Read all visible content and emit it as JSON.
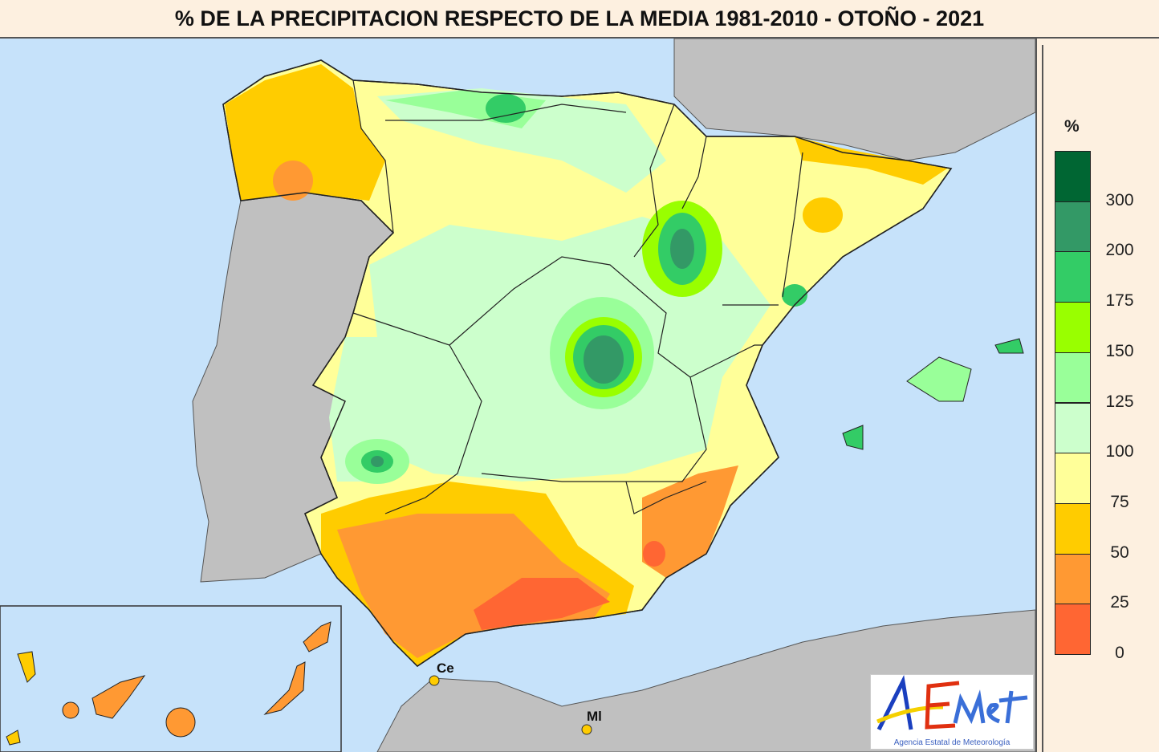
{
  "title": "% DE LA PRECIPITACION RESPECTO DE LA MEDIA 1981-2010 - OTOÑO - 2021",
  "legend": {
    "unit": "%",
    "labels": [
      "300",
      "200",
      "175",
      "150",
      "125",
      "100",
      "75",
      "50",
      "25",
      "0"
    ],
    "colors": [
      "#006633",
      "#339966",
      "#33cc66",
      "#99ff00",
      "#99ff99",
      "#ccffcc",
      "#ffff99",
      "#ffcc00",
      "#ff9933",
      "#ff6633"
    ]
  },
  "cities": {
    "ceuta": "Ce",
    "melilla": "Ml"
  },
  "logo": {
    "name": "AEMet",
    "subtitle": "Agencia Estatal de Meteorología"
  },
  "colors": {
    "sea": "#c6e2fa",
    "land_other": "#c0c0c0"
  }
}
